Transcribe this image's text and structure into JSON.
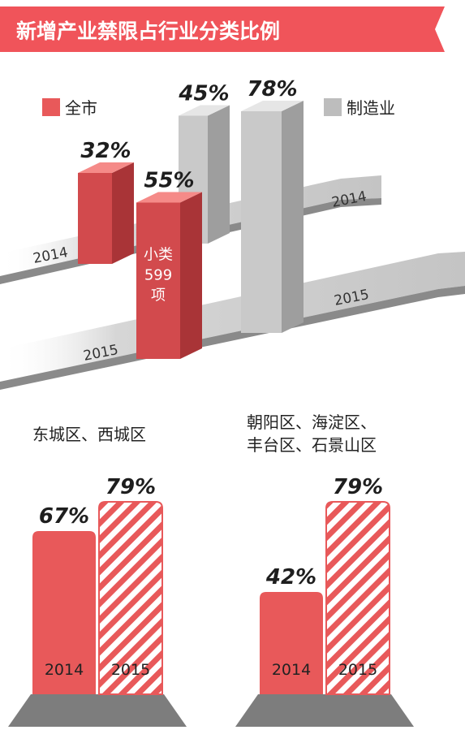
{
  "title": "新增产业禁限占行业分类比例",
  "colors": {
    "banner": "#f0545a",
    "red": "#e8595a",
    "red_front": "#d24a4d",
    "red_side": "#a93437",
    "red_top": "#f58a88",
    "grey_front": "#c9c9c9",
    "grey_side": "#9e9e9e",
    "grey_top": "#e6e6e6",
    "stripe_light": "#ffffff",
    "road": "#cfcfcf",
    "road_shadow": "#7f7f7f"
  },
  "chart_data": [
    {
      "type": "bar",
      "legend": [
        {
          "name": "全市",
          "color": "#e8595a"
        },
        {
          "name": "制造业",
          "color": "#bdbdbd"
        }
      ],
      "legend_position": "top",
      "series": [
        {
          "name": "全市",
          "values": [
            {
              "year": "2014",
              "value": 32,
              "label": "32%"
            },
            {
              "year": "2015",
              "value": 55,
              "label": "55%",
              "note": [
                "小类",
                "599",
                "项"
              ]
            }
          ]
        },
        {
          "name": "制造业",
          "values": [
            {
              "year": "2014",
              "value": 45,
              "label": "45%"
            },
            {
              "year": "2015",
              "value": 78,
              "label": "78%"
            }
          ]
        }
      ],
      "row_labels": [
        "2014",
        "2014",
        "2015",
        "2015"
      ]
    },
    {
      "type": "bar",
      "title": "东城区、西城区",
      "categories": [
        "2014",
        "2015"
      ],
      "values": [
        67,
        79
      ],
      "labels": [
        "67%",
        "79%"
      ],
      "ylim": [
        0,
        100
      ]
    },
    {
      "type": "bar",
      "title": [
        "朝阳区、海淀区、",
        "丰台区、石景山区"
      ],
      "categories": [
        "2014",
        "2015"
      ],
      "values": [
        42,
        79
      ],
      "labels": [
        "42%",
        "79%"
      ],
      "ylim": [
        0,
        100
      ]
    }
  ]
}
